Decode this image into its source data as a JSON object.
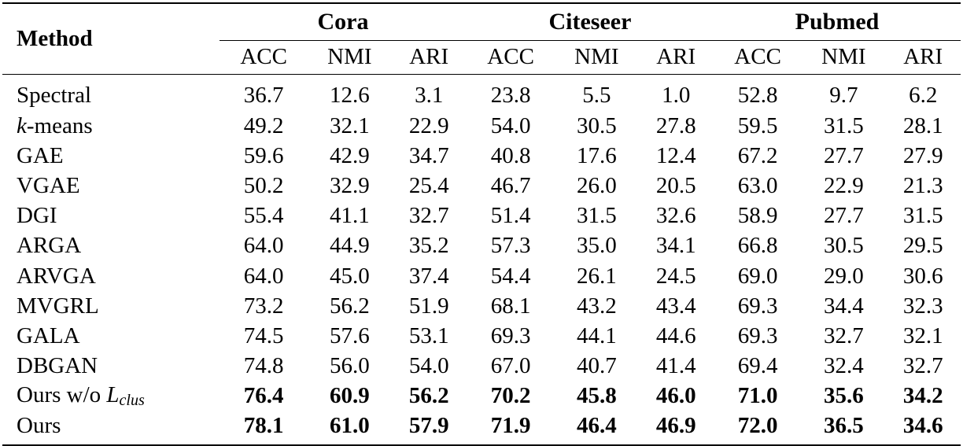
{
  "table": {
    "method_header": "Method",
    "groups": [
      "Cora",
      "Citeseer",
      "Pubmed"
    ],
    "metrics": [
      "ACC",
      "NMI",
      "ARI"
    ],
    "rows": [
      {
        "method": "Spectral",
        "bold": false,
        "values": [
          "36.7",
          "12.6",
          "3.1",
          "23.8",
          "5.5",
          "1.0",
          "52.8",
          "9.7",
          "6.2"
        ]
      },
      {
        "method_italic": "k",
        "method_rest": "-means",
        "bold": false,
        "values": [
          "49.2",
          "32.1",
          "22.9",
          "54.0",
          "30.5",
          "27.8",
          "59.5",
          "31.5",
          "28.1"
        ]
      },
      {
        "method": "GAE",
        "bold": false,
        "values": [
          "59.6",
          "42.9",
          "34.7",
          "40.8",
          "17.6",
          "12.4",
          "67.2",
          "27.7",
          "27.9"
        ]
      },
      {
        "method": "VGAE",
        "bold": false,
        "values": [
          "50.2",
          "32.9",
          "25.4",
          "46.7",
          "26.0",
          "20.5",
          "63.0",
          "22.9",
          "21.3"
        ]
      },
      {
        "method": "DGI",
        "bold": false,
        "values": [
          "55.4",
          "41.1",
          "32.7",
          "51.4",
          "31.5",
          "32.6",
          "58.9",
          "27.7",
          "31.5"
        ]
      },
      {
        "method": "ARGA",
        "bold": false,
        "values": [
          "64.0",
          "44.9",
          "35.2",
          "57.3",
          "35.0",
          "34.1",
          "66.8",
          "30.5",
          "29.5"
        ]
      },
      {
        "method": "ARVGA",
        "bold": false,
        "values": [
          "64.0",
          "45.0",
          "37.4",
          "54.4",
          "26.1",
          "24.5",
          "69.0",
          "29.0",
          "30.6"
        ]
      },
      {
        "method": "MVGRL",
        "bold": false,
        "values": [
          "73.2",
          "56.2",
          "51.9",
          "68.1",
          "43.2",
          "43.4",
          "69.3",
          "34.4",
          "32.3"
        ]
      },
      {
        "method": "GALA",
        "bold": false,
        "values": [
          "74.5",
          "57.6",
          "53.1",
          "69.3",
          "44.1",
          "44.6",
          "69.3",
          "32.7",
          "32.1"
        ]
      },
      {
        "method": "DBGAN",
        "bold": false,
        "values": [
          "74.8",
          "56.0",
          "54.0",
          "67.0",
          "40.7",
          "41.4",
          "69.4",
          "32.4",
          "32.7"
        ]
      },
      {
        "method_prefix": "Ours w/o ",
        "method_math": "L",
        "method_sub": "clus",
        "bold": true,
        "values": [
          "76.4",
          "60.9",
          "56.2",
          "70.2",
          "45.8",
          "46.0",
          "71.0",
          "35.6",
          "34.2"
        ]
      },
      {
        "method": "Ours",
        "bold": true,
        "values": [
          "78.1",
          "61.0",
          "57.9",
          "71.9",
          "46.4",
          "46.9",
          "72.0",
          "36.5",
          "34.6"
        ]
      }
    ]
  }
}
